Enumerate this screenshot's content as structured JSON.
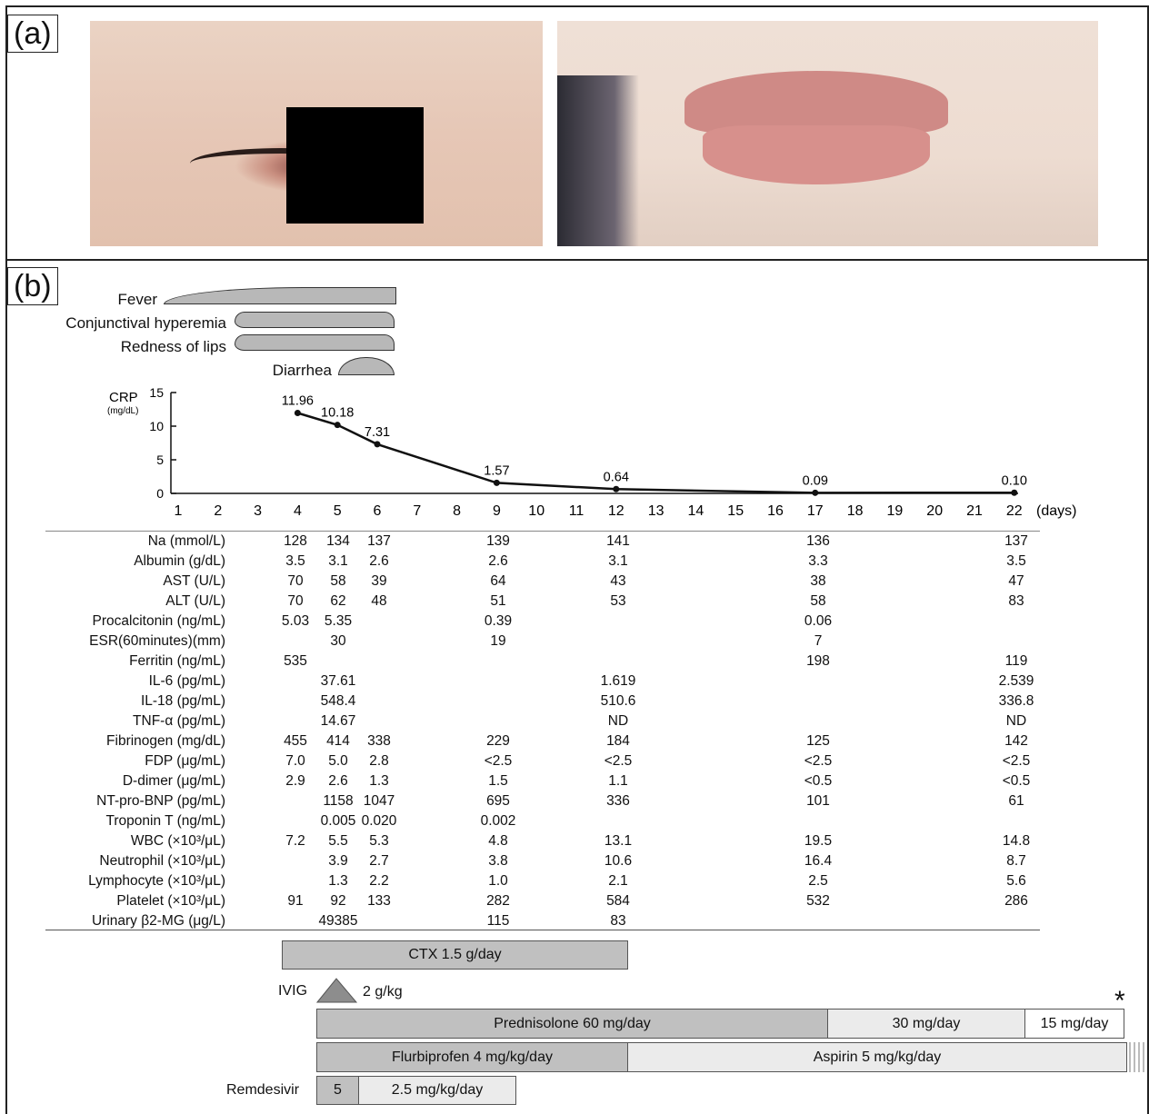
{
  "panels": {
    "a_label": "(a)",
    "b_label": "(b)"
  },
  "photos": {
    "left": "eye-photo",
    "right": "lips-photo"
  },
  "symptoms": [
    {
      "label": "Fever"
    },
    {
      "label": "Conjunctival hyperemia"
    },
    {
      "label": "Redness of lips"
    },
    {
      "label": "Diarrhea"
    }
  ],
  "chart_data": {
    "type": "line",
    "ylabel": "CRP",
    "yunit": "(mg/dL)",
    "ylim": [
      0,
      15
    ],
    "yticks": [
      0,
      5,
      10,
      15
    ],
    "xticks": [
      1,
      2,
      3,
      4,
      5,
      6,
      7,
      8,
      9,
      10,
      11,
      12,
      13,
      14,
      15,
      16,
      17,
      18,
      19,
      20,
      21,
      22
    ],
    "xunit": "(days)",
    "x": [
      4,
      5,
      6,
      9,
      12,
      17,
      22
    ],
    "y": [
      11.96,
      10.18,
      7.31,
      1.57,
      0.64,
      0.09,
      0.1
    ],
    "labels": [
      "11.96",
      "10.18",
      "7.31",
      "1.57",
      "0.64",
      "0.09",
      "0.10"
    ]
  },
  "lab_days": [
    4,
    5,
    6,
    9,
    12,
    17,
    22
  ],
  "labs": [
    {
      "name": "Na (mmol/L)",
      "values": {
        "4": "128",
        "5": "134",
        "6": "137",
        "9": "139",
        "12": "141",
        "17": "136",
        "22": "137"
      }
    },
    {
      "name": "Albumin (g/dL)",
      "values": {
        "4": "3.5",
        "5": "3.1",
        "6": "2.6",
        "9": "2.6",
        "12": "3.1",
        "17": "3.3",
        "22": "3.5"
      }
    },
    {
      "name": "AST (U/L)",
      "values": {
        "4": "70",
        "5": "58",
        "6": "39",
        "9": "64",
        "12": "43",
        "17": "38",
        "22": "47"
      }
    },
    {
      "name": "ALT (U/L)",
      "values": {
        "4": "70",
        "5": "62",
        "6": "48",
        "9": "51",
        "12": "53",
        "17": "58",
        "22": "83"
      }
    },
    {
      "name": "Procalcitonin (ng/mL)",
      "values": {
        "4": "5.03",
        "5": "5.35",
        "9": "0.39",
        "17": "0.06"
      }
    },
    {
      "name": "ESR(60minutes)(mm)",
      "values": {
        "5": "30",
        "9": "19",
        "17": "7"
      }
    },
    {
      "name": "Ferritin (ng/mL)",
      "values": {
        "4": "535",
        "17": "198",
        "22": "119"
      }
    },
    {
      "name": "IL-6 (pg/mL)",
      "values": {
        "5": "37.61",
        "12": "1.619",
        "22": "2.539"
      }
    },
    {
      "name": "IL-18 (pg/mL)",
      "values": {
        "5": "548.4",
        "12": "510.6",
        "22": "336.8"
      }
    },
    {
      "name": "TNF-α (pg/mL)",
      "values": {
        "5": "14.67",
        "12": "ND",
        "22": "ND"
      }
    },
    {
      "name": "Fibrinogen (mg/dL)",
      "values": {
        "4": "455",
        "5": "414",
        "6": "338",
        "9": "229",
        "12": "184",
        "17": "125",
        "22": "142"
      }
    },
    {
      "name": "FDP (μg/mL)",
      "values": {
        "4": "7.0",
        "5": "5.0",
        "6": "2.8",
        "9": "<2.5",
        "12": "<2.5",
        "17": "<2.5",
        "22": "<2.5"
      }
    },
    {
      "name": "D-dimer (μg/mL)",
      "values": {
        "4": "2.9",
        "5": "2.6",
        "6": "1.3",
        "9": "1.5",
        "12": "1.1",
        "17": "<0.5",
        "22": "<0.5"
      }
    },
    {
      "name": "NT-pro-BNP (pg/mL)",
      "values": {
        "5": "1158",
        "6": "1047",
        "9": "695",
        "12": "336",
        "17": "101",
        "22": "61"
      }
    },
    {
      "name": "Troponin T (ng/mL)",
      "values": {
        "5": "0.005",
        "6": "0.020",
        "9": "0.002"
      }
    },
    {
      "name": "WBC (×10³/μL)",
      "values": {
        "4": "7.2",
        "5": "5.5",
        "6": "5.3",
        "9": "4.8",
        "12": "13.1",
        "17": "19.5",
        "22": "14.8"
      }
    },
    {
      "name": "Neutrophil (×10³/μL)",
      "values": {
        "5": "3.9",
        "6": "2.7",
        "9": "3.8",
        "12": "10.6",
        "17": "16.4",
        "22": "8.7"
      }
    },
    {
      "name": "Lymphocyte (×10³/μL)",
      "values": {
        "5": "1.3",
        "6": "2.2",
        "9": "1.0",
        "12": "2.1",
        "17": "2.5",
        "22": "5.6"
      }
    },
    {
      "name": "Platelet (×10³/μL)",
      "values": {
        "4": "91",
        "5": "92",
        "6": "133",
        "9": "282",
        "12": "584",
        "17": "532",
        "22": "286"
      }
    },
    {
      "name": "Urinary β2-MG (μg/L)",
      "values": {
        "5": "49385",
        "9": "115",
        "12": "83"
      }
    }
  ],
  "treatments": {
    "ctx": "CTX 1.5 g/day",
    "ivig_label": "IVIG",
    "ivig_dose": "2 g/kg",
    "asterisk": "*",
    "pred": "Prednisolone 60 mg/day",
    "pred2": "30 mg/day",
    "pred3": "15 mg/day",
    "flurbi": "Flurbiprofen 4 mg/kg/day",
    "aspirin": "Aspirin 5 mg/kg/day",
    "remdesivir_label": "Remdesivir",
    "remdesivir1": "5",
    "remdesivir2": "2.5 mg/kg/day"
  }
}
